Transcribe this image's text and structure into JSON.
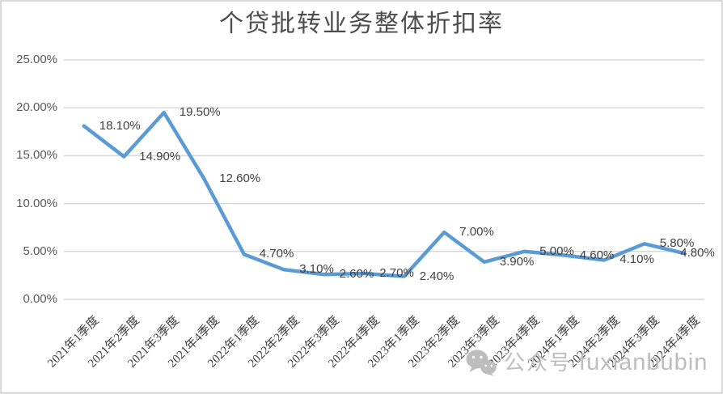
{
  "title": "个贷批转业务整体折扣率",
  "watermark": {
    "icon": "wechat-icon",
    "label": "公众号",
    "name": "fuxianbubin",
    "color": "#BDBDBD"
  },
  "chart_data": {
    "type": "line",
    "title": "个贷批转业务整体折扣率",
    "categories": [
      "2021年1季度",
      "2021年2季度",
      "2021年3季度",
      "2021年4季度",
      "2022年1季度",
      "2022年2季度",
      "2022年3季度",
      "2022年4季度",
      "2023年1季度",
      "2023年2季度",
      "2023年3季度",
      "2023年4季度",
      "2024年1季度",
      "2024年2季度",
      "2024年3季度",
      "2024年4季度"
    ],
    "values": [
      18.1,
      14.9,
      19.5,
      12.6,
      4.7,
      3.1,
      2.6,
      2.7,
      2.4,
      7.0,
      3.9,
      5.0,
      4.6,
      4.1,
      5.8,
      4.8
    ],
    "data_labels": [
      "18.10%",
      "14.90%",
      "19.50%",
      "12.60%",
      "4.70%",
      "3.10%",
      "2.60%",
      "2.70%",
      "2.40%",
      "7.00%",
      "3.90%",
      "5.00%",
      "4.60%",
      "4.10%",
      "5.80%",
      "4.80%"
    ],
    "y_tick_labels": [
      "0.00%",
      "5.00%",
      "10.00%",
      "15.00%",
      "20.00%",
      "25.00%"
    ],
    "ylim": [
      0,
      25
    ],
    "y_tick_step": 5,
    "xlabel": "",
    "ylabel": "",
    "grid": true,
    "legend": "none",
    "colors": {
      "line": "#5B9BD5",
      "gridline": "#D9D9D9",
      "border": "#D9D9D9",
      "background": "#FFFFFF",
      "title": "#4D4D4D",
      "y_axis_label": "#595959",
      "x_axis_label": "#3F3F3F",
      "data_label": "#404040"
    }
  }
}
